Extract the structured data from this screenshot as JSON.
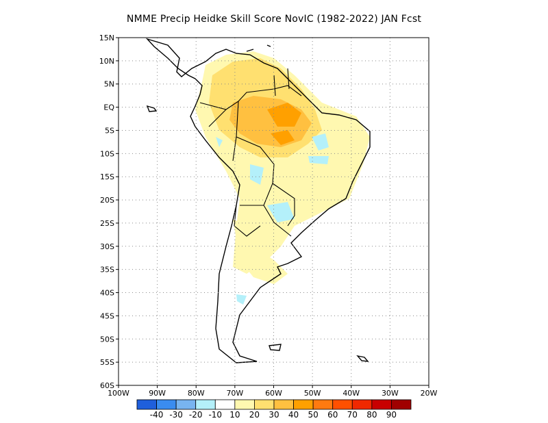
{
  "title": "NMME Precip Heidke Skill Score NovIC (1982-2022) JAN Fcst",
  "map": {
    "lon_range": [
      -100,
      -20
    ],
    "lat_range": [
      -60,
      15
    ],
    "lat_ticks": [
      "15N",
      "10N",
      "5N",
      "EQ",
      "5S",
      "10S",
      "15S",
      "20S",
      "25S",
      "30S",
      "35S",
      "40S",
      "45S",
      "50S",
      "55S",
      "60S"
    ],
    "lon_ticks": [
      "100W",
      "90W",
      "80W",
      "70W",
      "60W",
      "50W",
      "40W",
      "30W",
      "20W"
    ],
    "grid": "dotted"
  },
  "colorbar": {
    "colors": [
      "#1f5fdc",
      "#3a8cf0",
      "#78b4f0",
      "#b4f0fa",
      "#ffffff",
      "#fff8b0",
      "#ffe070",
      "#ffc040",
      "#ffa000",
      "#ff7a10",
      "#ff5000",
      "#f02800",
      "#c80000",
      "#a00000"
    ],
    "labels": [
      "-40",
      "-30",
      "-20",
      "-10",
      "10",
      "20",
      "30",
      "40",
      "50",
      "60",
      "70",
      "80",
      "90"
    ]
  }
}
